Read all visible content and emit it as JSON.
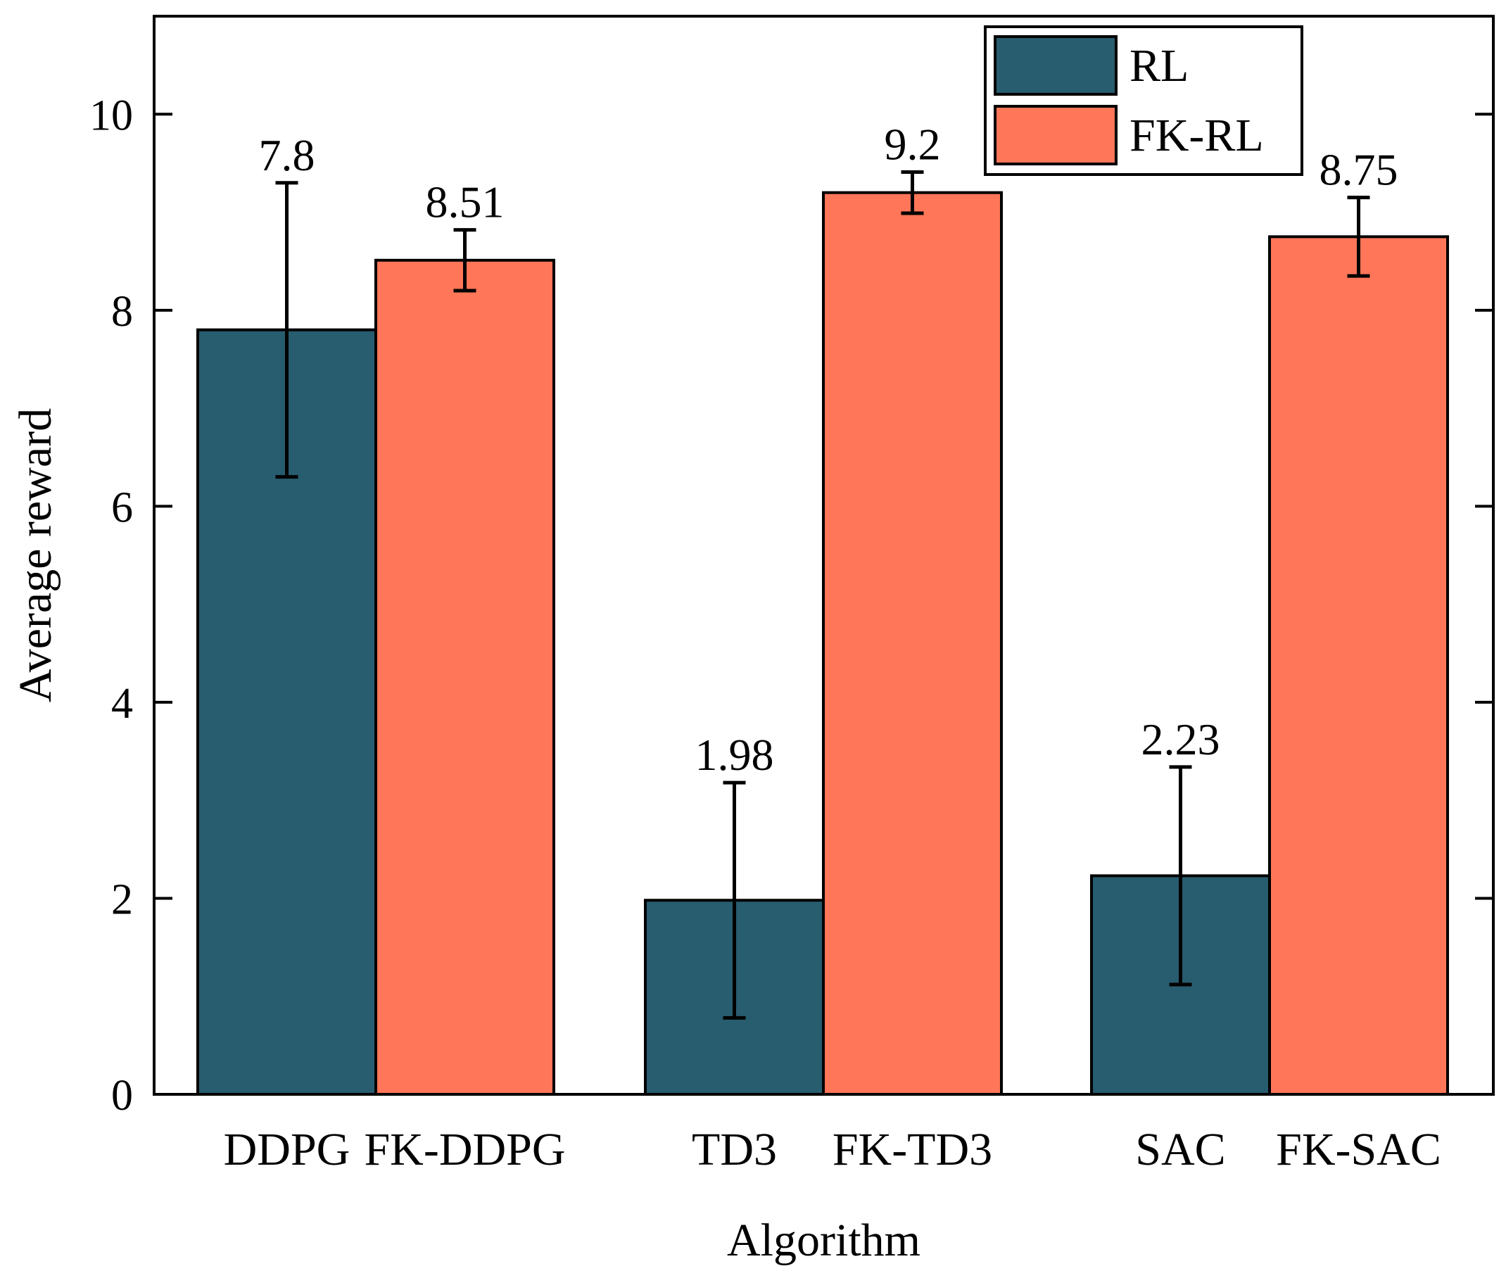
{
  "chart_data": {
    "type": "bar",
    "title": "",
    "xlabel": "Algorithm",
    "ylabel": "Average reward",
    "ylim": [
      0,
      11
    ],
    "yticks": [
      0,
      2,
      4,
      6,
      8,
      10
    ],
    "grid": false,
    "legend_position": "top-right",
    "groups": [
      {
        "bars": [
          {
            "category": "DDPG",
            "series": "RL",
            "value": 7.8,
            "error_low": 6.3,
            "error_high": 9.3,
            "label": "7.8"
          },
          {
            "category": "FK-DDPG",
            "series": "FK-RL",
            "value": 8.51,
            "error_low": 8.2,
            "error_high": 8.82,
            "label": "8.51"
          }
        ]
      },
      {
        "bars": [
          {
            "category": "TD3",
            "series": "RL",
            "value": 1.98,
            "error_low": 0.78,
            "error_high": 3.18,
            "label": "1.98"
          },
          {
            "category": "FK-TD3",
            "series": "FK-RL",
            "value": 9.2,
            "error_low": 8.99,
            "error_high": 9.41,
            "label": "9.2"
          }
        ]
      },
      {
        "bars": [
          {
            "category": "SAC",
            "series": "RL",
            "value": 2.23,
            "error_low": 1.12,
            "error_high": 3.34,
            "label": "2.23"
          },
          {
            "category": "FK-SAC",
            "series": "FK-RL",
            "value": 8.75,
            "error_low": 8.35,
            "error_high": 9.15,
            "label": "8.75"
          }
        ]
      }
    ],
    "series": [
      {
        "name": "RL",
        "color": "#285C6F"
      },
      {
        "name": "FK-RL",
        "color": "#FF7659"
      }
    ]
  }
}
